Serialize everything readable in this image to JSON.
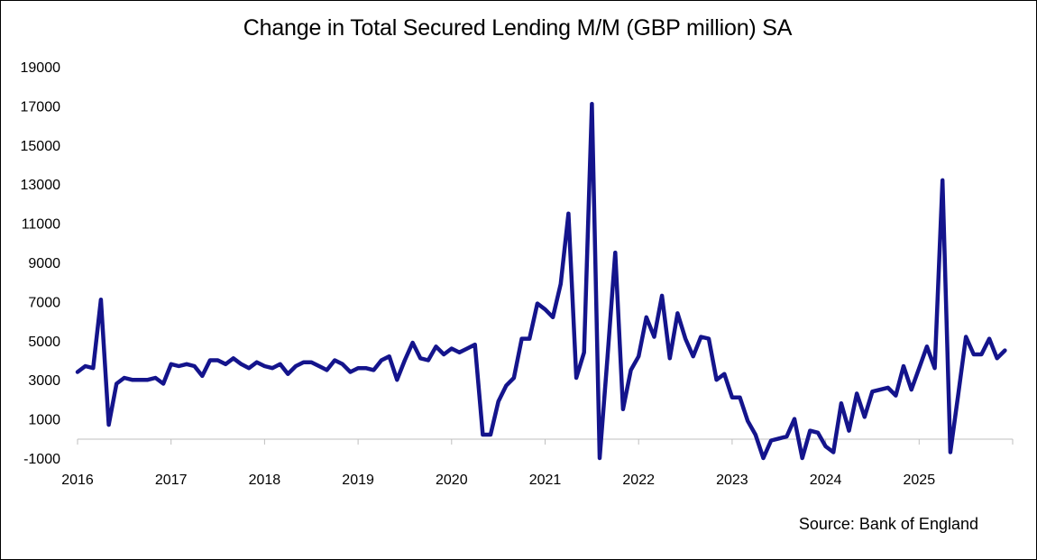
{
  "chart_data": {
    "type": "line",
    "title": "Change in Total Secured Lending M/M (GBP million) SA",
    "source": "Source: Bank of England",
    "xlabel": "",
    "ylabel": "",
    "ylim": [
      -1000,
      19000
    ],
    "yticks": [
      -1000,
      1000,
      3000,
      5000,
      7000,
      9000,
      11000,
      13000,
      15000,
      17000,
      19000
    ],
    "x_range": [
      2016.0,
      2026.0
    ],
    "xticks": [
      "2016",
      "2017",
      "2018",
      "2019",
      "2020",
      "2021",
      "2022",
      "2023",
      "2024",
      "2025"
    ],
    "line_color": "#14148C",
    "series": [
      {
        "name": "Change in Total Secured Lending M/M",
        "start": "2016-01",
        "frequency": "monthly",
        "values": [
          3400,
          3700,
          3600,
          7100,
          700,
          2800,
          3100,
          3000,
          3000,
          3000,
          3100,
          2800,
          3800,
          3700,
          3800,
          3700,
          3200,
          4000,
          4000,
          3800,
          4100,
          3800,
          3600,
          3900,
          3700,
          3600,
          3800,
          3300,
          3700,
          3900,
          3900,
          3700,
          3500,
          4000,
          3800,
          3400,
          3600,
          3600,
          3500,
          4000,
          4200,
          3000,
          4000,
          4900,
          4100,
          4000,
          4700,
          4300,
          4600,
          4400,
          4600,
          4800,
          200,
          200,
          1900,
          2700,
          3100,
          5100,
          5100,
          6900,
          6600,
          6200,
          7900,
          11500,
          3100,
          4400,
          17100,
          -1000,
          4100,
          9500,
          1500,
          3500,
          4200,
          6200,
          5200,
          7300,
          4100,
          6400,
          5100,
          4200,
          5200,
          5100,
          3000,
          3300,
          2100,
          2100,
          900,
          200,
          -1000,
          -100,
          0,
          100,
          1000,
          -1000,
          400,
          300,
          -400,
          -700,
          1800,
          400,
          2300,
          1100,
          2400,
          2500,
          2600,
          2200,
          3700,
          2500,
          3600,
          4700,
          3600,
          13200,
          -700,
          2200,
          5200,
          4300,
          4300,
          5100,
          4100,
          4500
        ]
      }
    ]
  }
}
